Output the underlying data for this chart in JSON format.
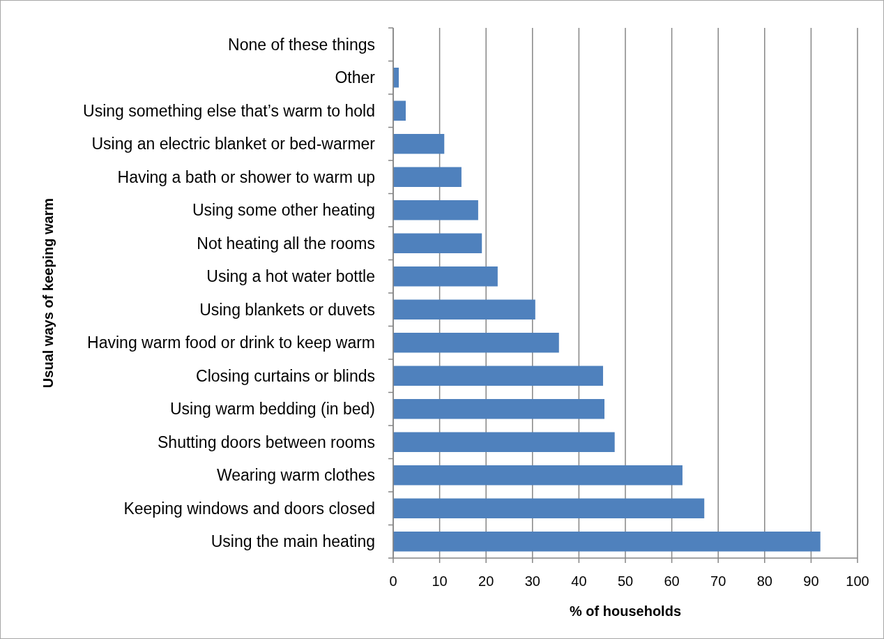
{
  "chart_data": {
    "type": "bar",
    "orientation": "horizontal",
    "xlabel": "% of households",
    "ylabel": "Usual ways of keeping warm",
    "categories": [
      "None of these things",
      "Other",
      "Using something else that’s warm to hold",
      "Using an electric blanket or bed-warmer",
      "Having a bath or shower to warm up",
      "Using some other heating",
      "Not heating all the rooms",
      "Using a hot water bottle",
      "Using blankets or duvets",
      "Having warm food or drink to keep warm",
      "Closing curtains or blinds",
      "Using warm bedding (in bed)",
      "Shutting doors between rooms",
      "Wearing warm clothes",
      "Keeping windows and doors closed",
      "Using the main heating"
    ],
    "values": [
      null,
      1.2,
      2.7,
      11,
      14.7,
      18.3,
      19.1,
      22.5,
      30.6,
      35.7,
      45.2,
      45.5,
      47.7,
      62.3,
      67,
      92
    ],
    "color": "#4f81bd",
    "xlim": [
      0,
      100
    ],
    "xticks": [
      0,
      10,
      20,
      30,
      40,
      50,
      60,
      70,
      80,
      90,
      100
    ],
    "grid": "x"
  }
}
